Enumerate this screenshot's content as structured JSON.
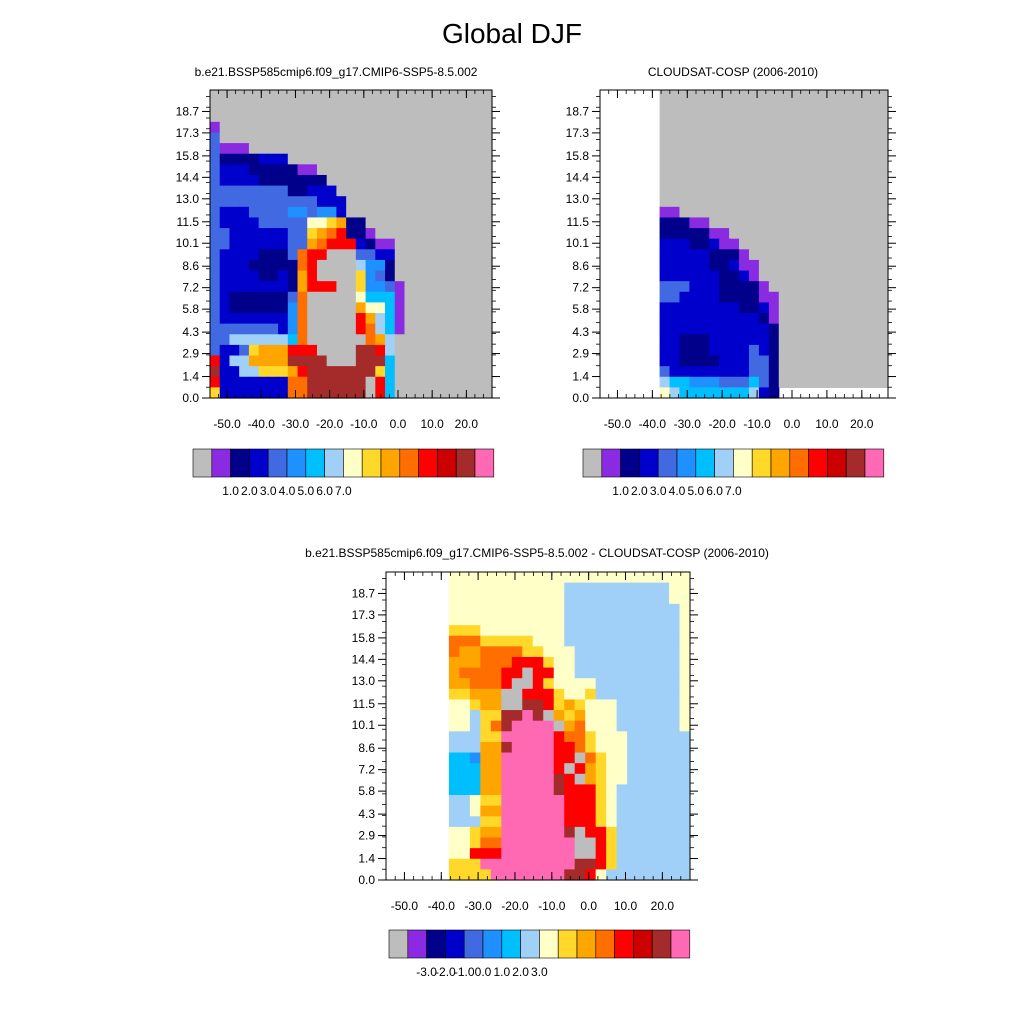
{
  "page": {
    "title": "Global DJF"
  },
  "colors": {
    "missing": "#bdbdbd",
    "scale": [
      "#8a2be2",
      "#00008b",
      "#0000cd",
      "#4169e1",
      "#1e90ff",
      "#00bfff",
      "#a0d0f8",
      "#ffffc8",
      "#ffd82a",
      "#ffa500",
      "#ff6e00",
      "#ff0000",
      "#cc0000",
      "#a52a2a",
      "#ff69b4"
    ]
  },
  "chart_data": [
    {
      "type": "heatmap",
      "title": "b.e21.BSSP585cmip6.f09_g17.CMIP6-SSP5-8.5.002",
      "x_ticks": [
        "-50.0",
        "-40.0",
        "-30.0",
        "-20.0",
        "-10.0",
        "0.0",
        "10.0",
        "20.0"
      ],
      "y_ticks": [
        "0.0",
        "1.4",
        "2.9",
        "4.3",
        "5.8",
        "7.2",
        "8.6",
        "10.1",
        "11.5",
        "13.0",
        "14.4",
        "15.8",
        "17.3",
        "18.7"
      ],
      "colorbar_ticks": [
        "1.0",
        "2.0",
        "3.0",
        "4.0",
        "5.0",
        "6.0",
        "7.0"
      ],
      "grid": [
        "MMMMMMMMMMMMMMMMMMMMMMMMMMMMM",
        "MMMMMMMMMMMMMMMMMMMMMMMMMMMMM",
        "MMMMMMMMMMMMMMMMMMMMMMMMMMMMM",
        "AMMMMMMMMMMMMMMMMMMMMMMMMMMMM",
        "DMMMMMMMMMMMMMMMMMMMMMMMMMMMM",
        "DAAAMMMMMMMMMMMMMMMMMMMMMMMMM",
        "DBBBBCCCMMMMMMMMMMMMMMMMMMMMM",
        "DCCCBBBBBAAMMMMMMMMMMMMMMMMMM",
        "DCCCCBBBBBBBMMMMMMMMMMMMMMMMM",
        "DDDDDDDDBBCCCMMMMMMMMMMMMMMMM",
        "DDDDDDDDDDDCCCMMMMMMMMMMMMMMM",
        "DCCCDDDDEEDEECMMMMMMMMMMMMMMM",
        "DCCCCDDDDDHHIJBBMMMMMMMMMMMMM",
        "DDCCCCCCDDIJKLBBAMMMMMMMMMMMM",
        "DDCCCCCCDDJKLLLCBAAMMMMMMMMMM",
        "DCCCCBBBDKLLMMMDDCCMMMMMMMMMM",
        "DCCCBBBBBKLMMMMGEEBMMMMMMMMMM",
        "DCCCCBBCBJLMMMMIEDBMMMMMMMMMM",
        "DCCCCCCCBJLLLMMIEEDAMMMMMMMMM",
        "DCBBBBBBDKMMMMMHFFFAMMMMMMMMM",
        "DCBBBBBBEKMMMMMJHHFAMMMMMMMMM",
        "DCCCCCCCEKMMMMMLJGFAMMMMMMMMM",
        "DDDDDDDCEKMMMMMLKGFAMMMMMMMMM",
        "DDGGGGGGFKMMMMMMKJGMMMMMMMMMM",
        "DCCDIJJJLLLMMMMNNLGMMMMMMMMMM",
        "LCGGJJJJNNNNMMMNNNFMMMMMMMMMM",
        "NCCGGIIIJLNNNNNNNIFMMMMMMMMMM",
        "LCCCCCCCKKNNNNNNMLFMMMMMMMMMM",
        "ICCCCCCCKKNNNNNNMLFMMMMMMMMMM"
      ]
    },
    {
      "type": "heatmap",
      "title": "CLOUDSAT-COSP (2006-2010)",
      "x_ticks": [
        "-50.0",
        "-40.0",
        "-30.0",
        "-20.0",
        "-10.0",
        "0.0",
        "10.0",
        "20.0"
      ],
      "y_ticks": [
        "0.0",
        "1.4",
        "2.9",
        "4.3",
        "5.8",
        "7.2",
        "8.6",
        "10.1",
        "11.5",
        "13.0",
        "14.4",
        "15.8",
        "17.3",
        "18.7"
      ],
      "colorbar_ticks": [
        "1.0",
        "2.0",
        "3.0",
        "4.0",
        "5.0",
        "6.0",
        "7.0"
      ],
      "grid": [
        "WWWWWWMMMMMMMMMMMMMMMMMMMMMMM",
        "WWWWWWMMMMMMMMMMMMMMMMMMMMMMM",
        "WWWWWWMMMMMMMMMMMMMMMMMMMMMMM",
        "WWWWWWMMMMMMMMMMMMMMMMMMMMMMM",
        "WWWWWWMMMMMMMMMMMMMMMMMMMMMMM",
        "WWWWWWMMMMMMMMMMMMMMMMMMMMMMM",
        "WWWWWWMMMMMMMMMMMMMMMMMMMMMMM",
        "WWWWWWMMMMMMMMMMMMMMMMMMMMMMM",
        "WWWWWWMMMMMMMMMMMMMMMMMMMMMMM",
        "WWWWWWMMMMMMMMMMMMMMMMMMMMMMM",
        "WWWWWWMMMMMMMMMMMMMMMMMMMMMMM",
        "WWWWWWAAMMMMMMMMMMMMMMMMMMMMM",
        "WWWWWWBBBAAMMMMMMMMMMMMMMMMMM",
        "WWWWWWBBBBBAAMMMMMMMMMMMMMMMM",
        "WWWWWWCCCBBCAAMMMMMMMMMMMMMMM",
        "WWWWWWCCCCCBBBAMMMMMMMMMMMMMM",
        "WWWWWWCCCCCBBCAAMMMMMMMMMMMMM",
        "WWWWWWCCCCCCBBCAMMMMMMMMMMMMM",
        "WWWWWWDDDCCCBBBBAMMMMMMMMMMMM",
        "WWWWWWDDCCCCBBBBAAMMMMMMMMMMM",
        "WWWWWWCCCCCCCCBBCAMMMMMMMMMMM",
        "WWWWWWCCCCCCCCCCBAMMMMMMMMMMM",
        "WWWWWWCCCCCCCCCCCBMMMMMMMMMMM",
        "WWWWWWCCBBBCCCCCCBMMMMMMMMMMM",
        "WWWWWWCCBBBCCCCDCBMMMMMMMMMMM",
        "WWWWWWCCBBBBCCCDDBMMMMMMMMMMM",
        "WWWWWWDCCCCCCCCDDBMMMMMMMMMMM",
        "WWWWWWGFFEEEDDDFDBMMMMMMMMMMM",
        "WWWWWWHGFFFFFFFGCBWWWWWWWWWWW"
      ]
    },
    {
      "type": "heatmap",
      "title": "b.e21.BSSP585cmip6.f09_g17.CMIP6-SSP5-8.5.002 - CLOUDSAT-COSP (2006-2010)",
      "x_ticks": [
        "-50.0",
        "-40.0",
        "-30.0",
        "-20.0",
        "-10.0",
        "0.0",
        "10.0",
        "20.0"
      ],
      "y_ticks": [
        "0.0",
        "1.4",
        "2.9",
        "4.3",
        "5.8",
        "7.2",
        "8.6",
        "10.1",
        "11.5",
        "13.0",
        "14.4",
        "15.8",
        "17.3",
        "18.7"
      ],
      "colorbar_ticks": [
        "-3.0",
        "-2.0",
        "-1.0",
        "0.0",
        "1.0",
        "2.0",
        "3.0"
      ],
      "grid": [
        "WWWWWWHHHHHHHHHHHHHHHHHHHHHHH",
        "WWWWWWHHHHHHHHHHHGGGGGGGGGGHH",
        "WWWWWWHHHHHHHHHHHGGGGGGGGGGHH",
        "WWWWWWHHHHHHHHHHHGGGGGGGGGGGH",
        "WWWWWWHHHHHHHHHHHGGGGGGGGGGGH",
        "WWWWWWIIIHHHHHHHHGGGGGGGGGGGH",
        "WWWWWWKKKIIIIIHHHGGGGGGGGGGGH",
        "WWWWWWKJJKKKKIIHHHGGGGGGGGGGH",
        "WWWWWWJJJKKKLLLIHHGGGGGGGGGGH",
        "WWWWWWJKKKKLLMLLHHGGGGGGGGGGH",
        "WWWWWWJJKKKLMMLIHHHHGGGGGGGGH",
        "WWWWWWIIJJJMMLLLIHHIGGGGGGGGH",
        "WWWWWWHHIJJMMNNLIJIHHHGGGGGGH",
        "WWWWWWHHGIINNONMJIJHHHGGGGGGH",
        "WWWWWWHHGIKNOOOOMJKHHHGGGGGGH",
        "WWWWWWGGGIIOOOOOLKKIHHHGGGGGG",
        "WWWWWWGGGJJNOOOOLLKIHHHGGGGGG",
        "WWWWWWFFEJJOOOOOLLMKIHHGGGGGG",
        "WWWWWWFFFJJOOOOOLMLJIHHGGGGGG",
        "WWWWWWFFFJJOOOOONLMJIHHGGGGGG",
        "WWWWWWFFFJJOOOOONLLLIHGGGGGGG",
        "WWWWWWGGHIIOOOOOOLLLIHGGGGGGG",
        "WWWWWWGGHJJOOOOOOLLLIHGGGGGGG",
        "WWWWWWGGGIIOOOOOOLLLIHGGGGGGG",
        "WWWWWWHHIJJOOOOOONMLLIGGGGGGG",
        "WWWWWWHHIKKOOOOOOOMMLIGGGGGGG",
        "WWWWWWHHLLLOOOOOOOMMLIGGGGGGG",
        "WWWWWWIIIOOOOOOOOONNLIGGGGGGG",
        "WWWWWWIIIIOOOOOOONNLHGGGGGGGG"
      ]
    }
  ]
}
